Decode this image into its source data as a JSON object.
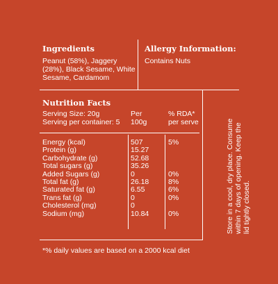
{
  "ingredients": {
    "heading": "Ingredients",
    "lines": [
      "Peanut (58%), Jaggery",
      "(28%), Black Sesame, White",
      "Sesame, Cardamom"
    ]
  },
  "allergy": {
    "heading": "Allergy Information:",
    "text": "Contains Nuts"
  },
  "nutrition": {
    "heading": "Nutrition Facts",
    "serving_size": "Serving Size: 20g",
    "serving_per_container": "Serving per container: 5",
    "col_per_line1": "Per",
    "col_per_line2": "100g",
    "col_rda_line1": "% RDA*",
    "col_rda_line2": "per serve",
    "rows": [
      {
        "label": "Energy (kcal)",
        "per100": "507",
        "rda": "5%"
      },
      {
        "label": "Protein (g)",
        "per100": "15.27",
        "rda": ""
      },
      {
        "label": "Carbohydrate (g)",
        "per100": "52.68",
        "rda": ""
      },
      {
        "label": "Total sugars (g)",
        "per100": "35.26",
        "rda": ""
      },
      {
        "label": "Added Sugars (g)",
        "per100": "0",
        "rda": "0%"
      },
      {
        "label": "Total fat (g)",
        "per100": "26.18",
        "rda": "8%"
      },
      {
        "label": "Saturated fat (g)",
        "per100": "6.55",
        "rda": "6%"
      },
      {
        "label": "Trans fat (g)",
        "per100": "0",
        "rda": "0%"
      },
      {
        "label": "Cholesterol (mg)",
        "per100": "0",
        "rda": ""
      },
      {
        "label": "Sodium (mg)",
        "per100": "10.84",
        "rda": "0%"
      }
    ],
    "footnote": "*% daily values are based on a 2000 kcal diet"
  },
  "storage": {
    "lines": [
      "Store in a cool, dry place. Consume",
      "within 7 days of opening. Keep the",
      "lid tightly closed."
    ]
  },
  "colors": {
    "background": "#c6452a",
    "text": "#ffffff"
  }
}
